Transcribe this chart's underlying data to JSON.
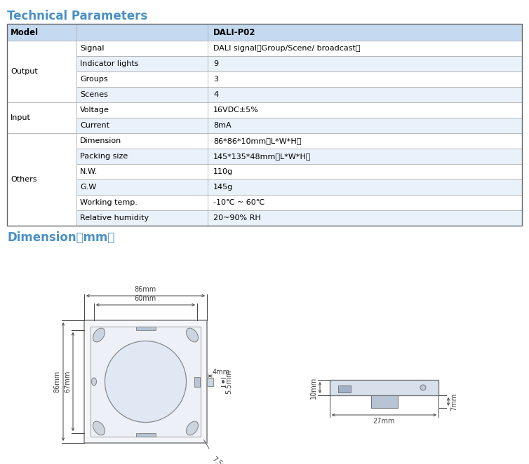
{
  "title1": "Technical Parameters",
  "title_color": "#4A90C4",
  "bg_color": "#ffffff",
  "table_header_bg": "#C5D9F1",
  "table_row_bg_even": "#ffffff",
  "table_row_bg_odd": "#E9F1FA",
  "table_border_color": "#aaaaaa",
  "table_data": [
    [
      "Model",
      "",
      "DALI-P02"
    ],
    [
      "Output",
      "Signal",
      "DALI signal（Group/Scene/ broadcast）"
    ],
    [
      "Output",
      "Indicator lights",
      "9"
    ],
    [
      "Output",
      "Groups",
      "3"
    ],
    [
      "Output",
      "Scenes",
      "4"
    ],
    [
      "Input",
      "Voltage",
      "16VDC±5%"
    ],
    [
      "Input",
      "Current",
      "8mA"
    ],
    [
      "Others",
      "Dimension",
      "86*86*10mm（L*W*H）"
    ],
    [
      "Others",
      "Packing size",
      "145*135*48mm（L*W*H）"
    ],
    [
      "Others",
      "N.W.",
      "110g"
    ],
    [
      "Others",
      "G.W",
      "145g"
    ],
    [
      "Others",
      "Working temp.",
      "-10℃ ~ 60℃"
    ],
    [
      "Others",
      "Relative humidity",
      "20~90% RH"
    ]
  ],
  "dim_title": "Dimension（mm）",
  "ann_color": "#444444",
  "draw_color": "#888888",
  "ann_fs": 7.0
}
